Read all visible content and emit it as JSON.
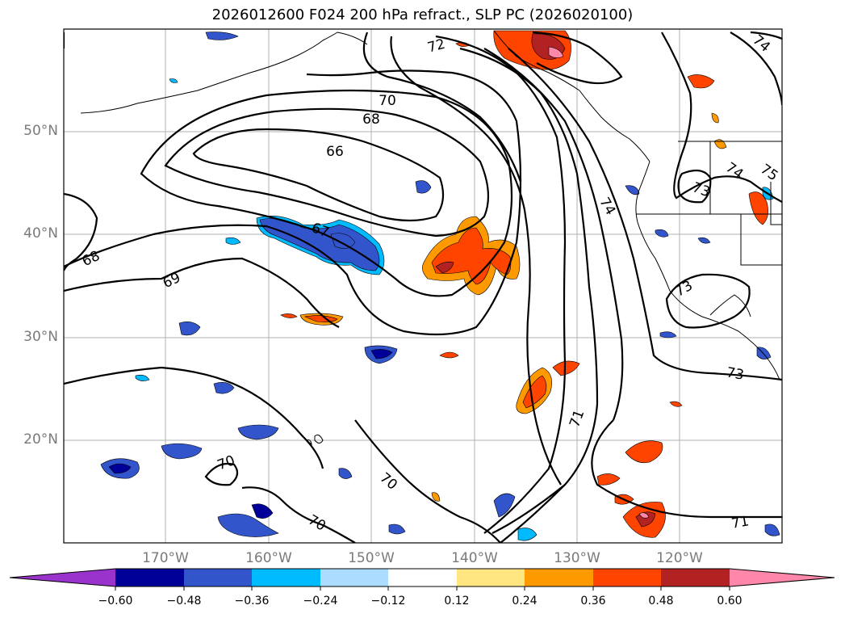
{
  "title": "2026012600 F024 200 hPa refract., SLP PC (2026020100)",
  "axes": {
    "lat_labels": [
      "50°N",
      "40°N",
      "30°N",
      "20°N"
    ],
    "lon_labels": [
      "170°W",
      "160°W",
      "150°W",
      "140°W",
      "130°W",
      "120°W"
    ]
  },
  "contour_labels": [
    "72",
    "70",
    "68",
    "66",
    "67",
    "68",
    "69",
    "74",
    "73",
    "74",
    "75",
    "73",
    "73",
    "71",
    "70",
    "70",
    "70",
    "71",
    "74"
  ],
  "colorbar": {
    "ticks": [
      "−0.60",
      "−0.48",
      "−0.36",
      "−0.24",
      "−0.12",
      "0.12",
      "0.24",
      "0.36",
      "0.48",
      "0.60"
    ],
    "colors": [
      "#9933cc",
      "#000099",
      "#3355cc",
      "#00bbff",
      "#aaddff",
      "#ffffff",
      "#ffe680",
      "#ff9900",
      "#ff4400",
      "#b22222",
      "#ff88aa"
    ]
  }
}
